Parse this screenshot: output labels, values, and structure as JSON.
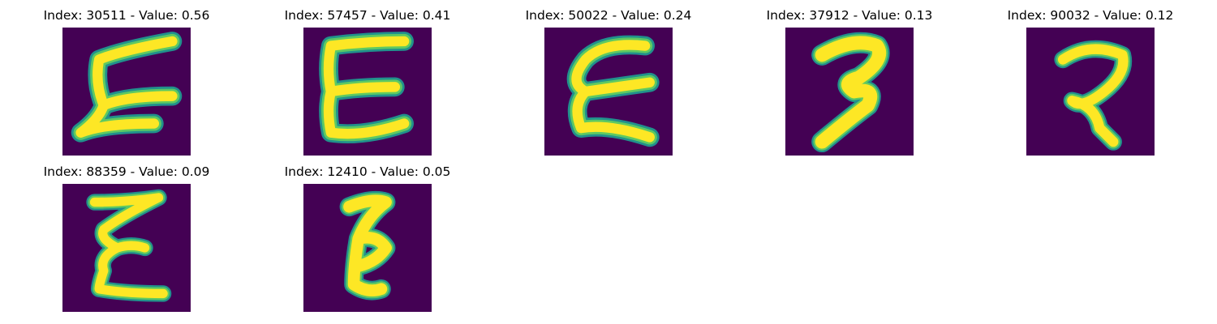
{
  "panels": [
    {
      "title": "Index: 30511 - Value: 0.56",
      "index": 30511,
      "value": 0.56,
      "glyph": "letter-e-glyph"
    },
    {
      "title": "Index: 57457 - Value: 0.41",
      "index": 57457,
      "value": 0.41,
      "glyph": "letter-e-glyph"
    },
    {
      "title": "Index: 50022 - Value: 0.24",
      "index": 50022,
      "value": 0.24,
      "glyph": "letter-e-glyph"
    },
    {
      "title": "Index: 37912 - Value: 0.13",
      "index": 37912,
      "value": 0.13,
      "glyph": "digit-3-glyph"
    },
    {
      "title": "Index: 90032 - Value: 0.12",
      "index": 90032,
      "value": 0.12,
      "glyph": "digit-2-glyph"
    },
    {
      "title": "Index: 88359 - Value: 0.09",
      "index": 88359,
      "value": 0.09,
      "glyph": "letter-e-glyph"
    },
    {
      "title": "Index: 12410 - Value: 0.05",
      "index": 12410,
      "value": 0.05,
      "glyph": "letter-e-glyph"
    }
  ],
  "colors": {
    "background": "#440154",
    "stroke_edge": "#21918c",
    "stroke_mid": "#5ec962",
    "stroke_core": "#fde725"
  }
}
